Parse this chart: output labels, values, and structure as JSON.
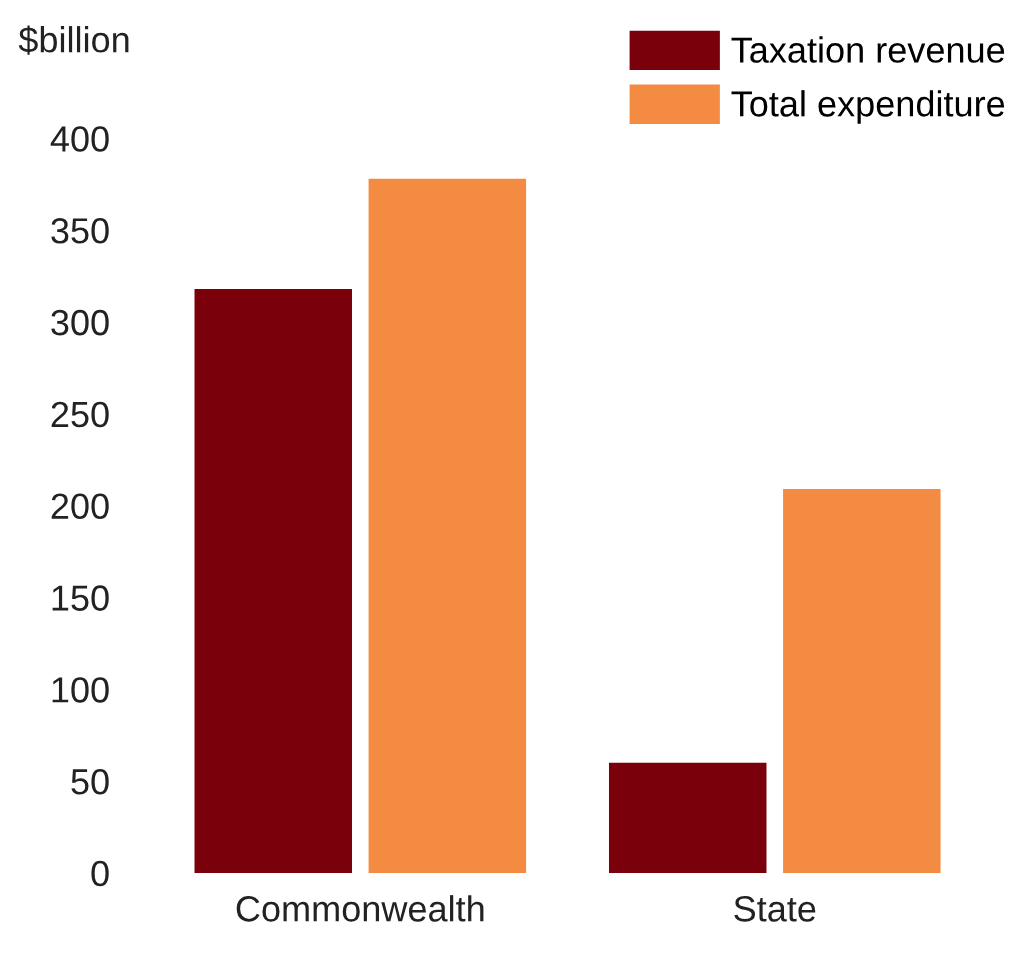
{
  "chart_data": {
    "type": "bar",
    "ylabel": "$billion",
    "categories": [
      "Commonwealth",
      "State"
    ],
    "series": [
      {
        "name": "Taxation revenue",
        "color": "#7a000b",
        "values": [
          318,
          60
        ]
      },
      {
        "name": "Total expenditure",
        "color": "#f38b42",
        "values": [
          378,
          209
        ]
      }
    ],
    "ylim": [
      0,
      400
    ],
    "yticks": [
      0,
      50,
      100,
      150,
      200,
      250,
      300,
      350,
      400
    ],
    "legend": "top right"
  }
}
